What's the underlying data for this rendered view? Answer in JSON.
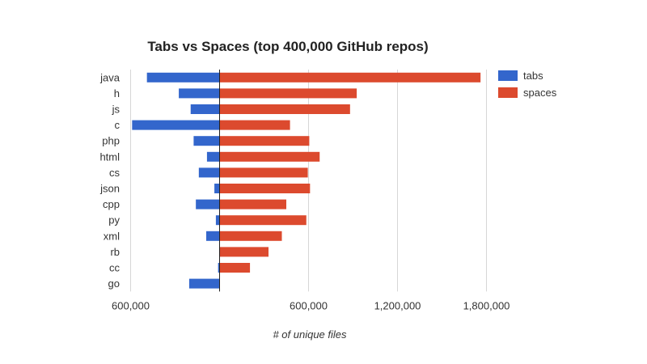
{
  "chart_data": {
    "type": "bar",
    "orientation": "horizontal",
    "title": "Tabs vs Spaces (top 400,000 GitHub repos)",
    "xlabel": "# of unique files",
    "ylabel": "",
    "categories": [
      "java",
      "h",
      "js",
      "c",
      "php",
      "html",
      "cs",
      "json",
      "cpp",
      "py",
      "xml",
      "rb",
      "cc",
      "go"
    ],
    "series": [
      {
        "name": "tabs",
        "color": "#3366cc",
        "direction": "left",
        "values": [
          490000,
          275000,
          195000,
          590000,
          175000,
          85000,
          140000,
          35000,
          160000,
          25000,
          90000,
          0,
          10000,
          205000
        ]
      },
      {
        "name": "spaces",
        "color": "#dc4a2e",
        "direction": "right",
        "values": [
          1760000,
          925000,
          880000,
          475000,
          605000,
          675000,
          595000,
          610000,
          450000,
          585000,
          420000,
          330000,
          205000,
          0
        ]
      }
    ],
    "xlim": [
      -600000,
      1800000
    ],
    "ticks": [
      {
        "value": -600000,
        "label": "600,000"
      },
      {
        "value": 600000,
        "label": "600,000"
      },
      {
        "value": 1200000,
        "label": "1,200,000"
      },
      {
        "value": 1800000,
        "label": "1,800,000"
      }
    ],
    "grid": true,
    "legend_position": "top-right"
  }
}
